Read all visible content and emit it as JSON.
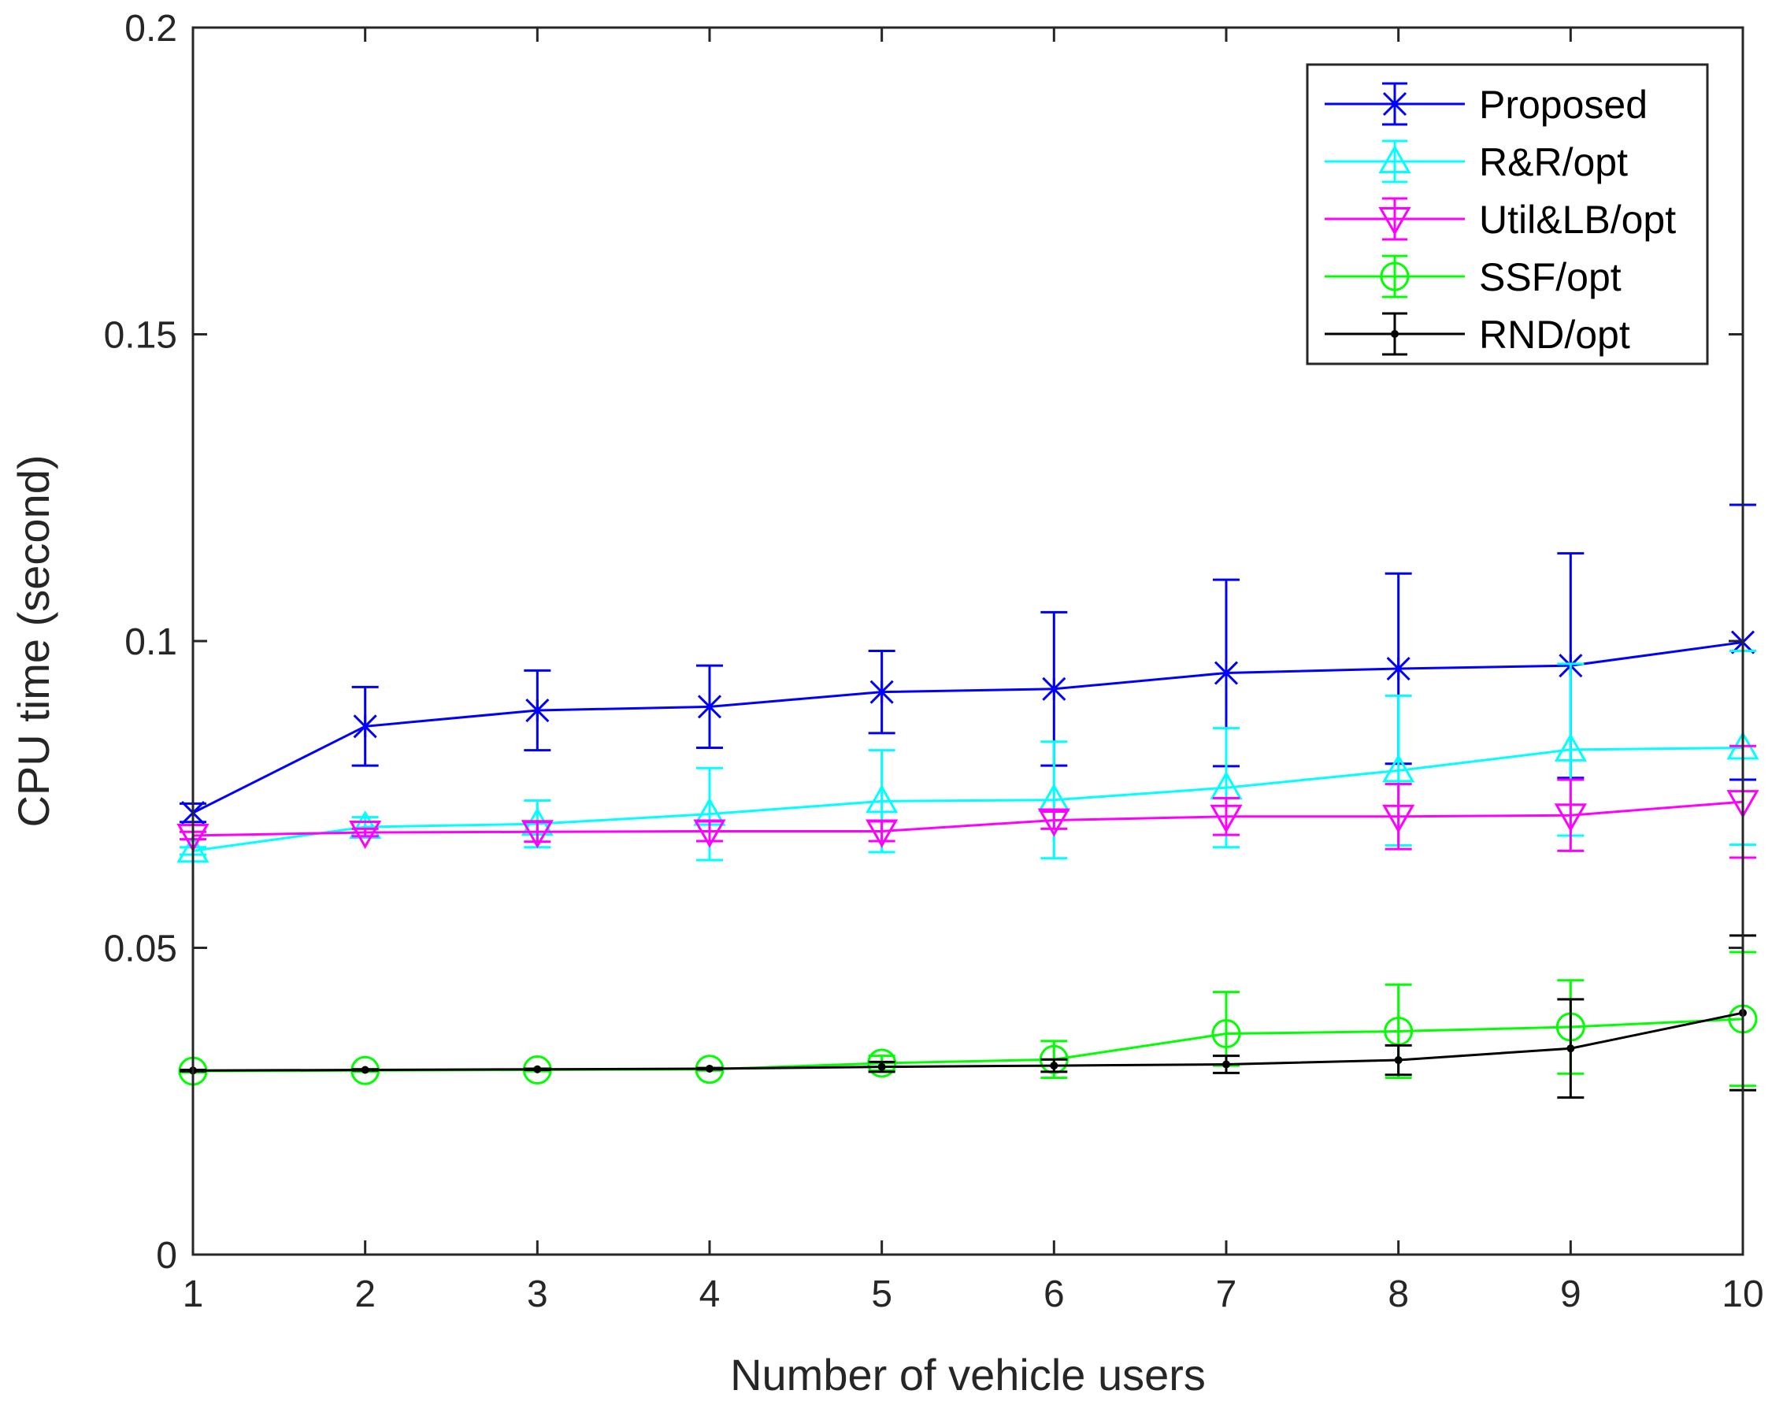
{
  "chart_data": {
    "type": "line",
    "title": "",
    "xlabel": "Number of vehicle users",
    "ylabel": "CPU time (second)",
    "xlim": [
      1,
      10
    ],
    "ylim": [
      0,
      0.2
    ],
    "x_ticks": [
      1,
      2,
      3,
      4,
      5,
      6,
      7,
      8,
      9,
      10
    ],
    "y_ticks": [
      0,
      0.05,
      0.1,
      0.15,
      0.2
    ],
    "y_tick_labels": [
      "0",
      "0.05",
      "0.1",
      "0.15",
      "0.2"
    ],
    "grid": false,
    "legend_position": "top-right",
    "x": [
      1,
      2,
      3,
      4,
      5,
      6,
      7,
      8,
      9,
      10
    ],
    "series": [
      {
        "name": "Proposed",
        "color": "#0000ff",
        "marker": "x-star",
        "values": [
          0.072,
          0.0861,
          0.0887,
          0.0893,
          0.0917,
          0.0922,
          0.0948,
          0.0955,
          0.096,
          0.0998
        ],
        "error_low": [
          0.0705,
          0.0797,
          0.0822,
          0.0826,
          0.085,
          0.0797,
          0.0796,
          0.08,
          0.0777,
          0.0774
        ],
        "error_high": [
          0.0735,
          0.0925,
          0.0952,
          0.096,
          0.0984,
          0.1047,
          0.11,
          0.111,
          0.1143,
          0.1222
        ]
      },
      {
        "name": "R&R/opt",
        "color": "#00ffff",
        "marker": "triangle-up",
        "values": [
          0.0658,
          0.0697,
          0.0702,
          0.0718,
          0.0739,
          0.0741,
          0.0761,
          0.0789,
          0.0823,
          0.0826
        ],
        "error_low": [
          0.0652,
          0.0681,
          0.0664,
          0.0643,
          0.0656,
          0.0646,
          0.0664,
          0.0667,
          0.0683,
          0.0668
        ],
        "error_high": [
          0.0664,
          0.0713,
          0.074,
          0.0793,
          0.0822,
          0.0836,
          0.0858,
          0.0911,
          0.0963,
          0.0984
        ]
      },
      {
        "name": "Util&LB/opt",
        "color": "#ff00ff",
        "marker": "triangle-down",
        "values": [
          0.0683,
          0.0688,
          0.0689,
          0.069,
          0.069,
          0.0708,
          0.0714,
          0.0714,
          0.0716,
          0.0738
        ],
        "error_low": [
          0.0677,
          0.0682,
          0.0673,
          0.0674,
          0.0674,
          0.0694,
          0.0684,
          0.0661,
          0.0658,
          0.0647
        ],
        "error_high": [
          0.0689,
          0.0694,
          0.0705,
          0.0706,
          0.0706,
          0.0722,
          0.0744,
          0.0767,
          0.0774,
          0.0829
        ]
      },
      {
        "name": "SSF/opt",
        "color": "#00ff00",
        "marker": "circle",
        "values": [
          0.0299,
          0.03,
          0.0301,
          0.0302,
          0.0312,
          0.0318,
          0.036,
          0.0364,
          0.0371,
          0.0384
        ],
        "error_low": [
          0.0297,
          0.0298,
          0.0299,
          0.03,
          0.03,
          0.0288,
          0.0308,
          0.0288,
          0.0295,
          0.0275
        ],
        "error_high": [
          0.0301,
          0.0302,
          0.0303,
          0.0304,
          0.0324,
          0.0348,
          0.0428,
          0.044,
          0.0447,
          0.0493
        ]
      },
      {
        "name": "RND/opt",
        "color": "#000000",
        "marker": "dot",
        "values": [
          0.03,
          0.0301,
          0.0302,
          0.0303,
          0.0306,
          0.0308,
          0.031,
          0.0317,
          0.0336,
          0.0394
        ],
        "error_low": [
          0.0299,
          0.03,
          0.0301,
          0.0302,
          0.0298,
          0.0298,
          0.0296,
          0.0293,
          0.0256,
          0.0268
        ],
        "error_high": [
          0.0301,
          0.0302,
          0.0303,
          0.0304,
          0.0314,
          0.0318,
          0.0324,
          0.0341,
          0.0416,
          0.052
        ]
      }
    ]
  }
}
